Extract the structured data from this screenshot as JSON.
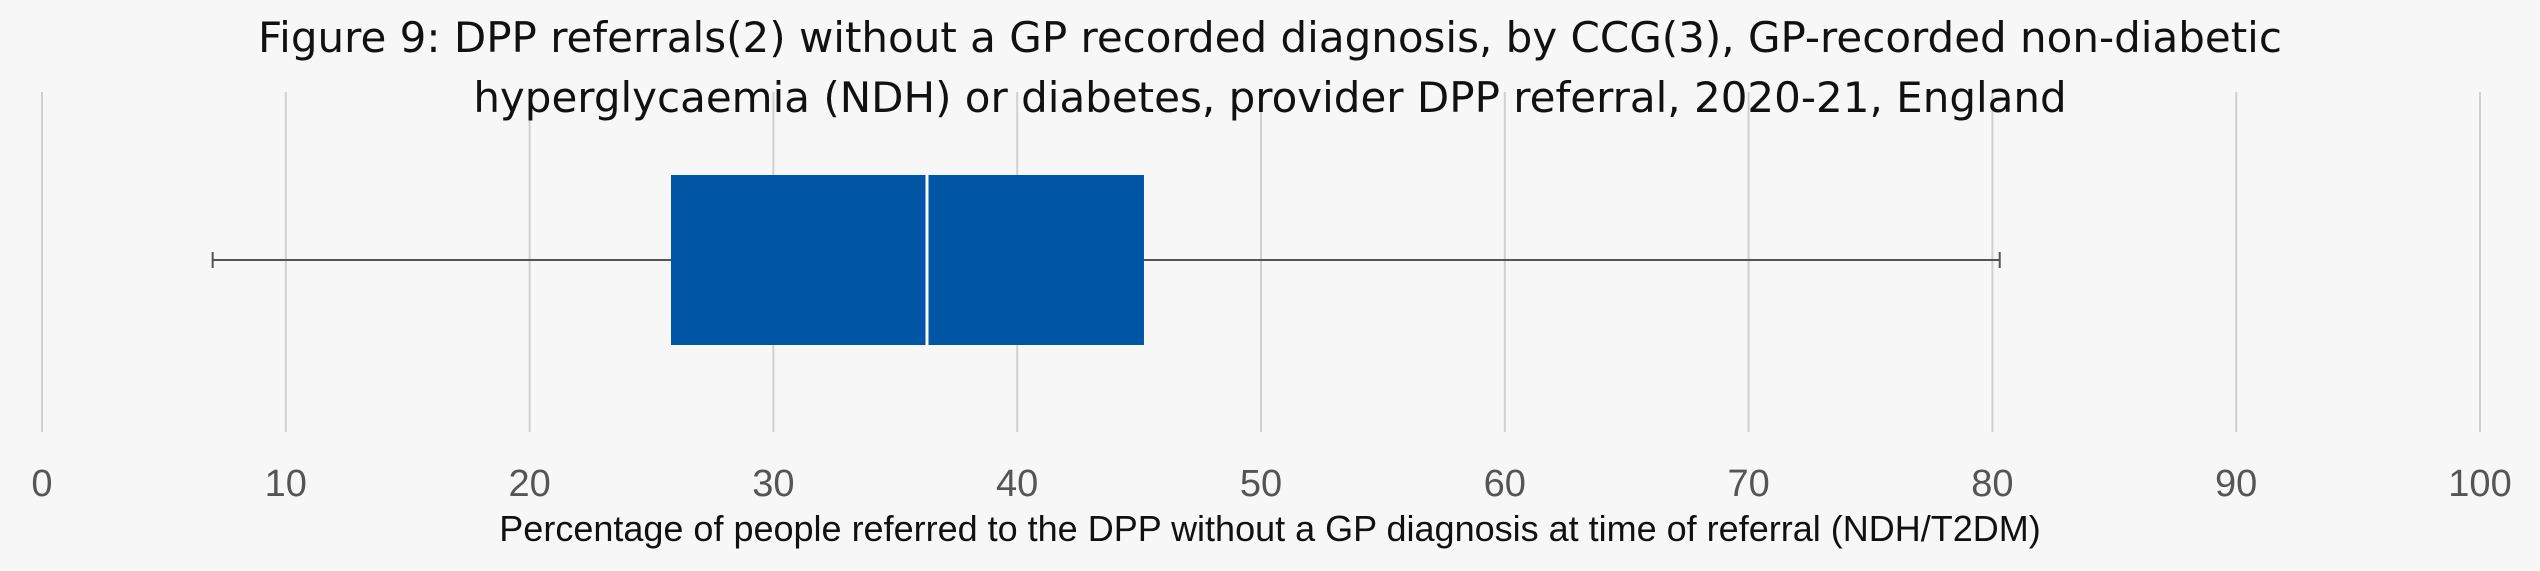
{
  "chart_data": {
    "type": "box",
    "title_lines": [
      "Figure 9: DPP referrals(2) without a GP recorded diagnosis, by CCG(3), GP-recorded non-diabetic",
      "hyperglycaemia (NDH) or diabetes, provider DPP referral, 2020-21, England"
    ],
    "xlabel": "Percentage of people referred to the DPP without a GP diagnosis at time of referral (NDH/T2DM)",
    "ylabel": "",
    "xlim": [
      0,
      100
    ],
    "xticks": [
      "0",
      "10",
      "20",
      "30",
      "40",
      "50",
      "60",
      "70",
      "80",
      "90",
      "100"
    ],
    "xtick_values": [
      0,
      10,
      20,
      30,
      40,
      50,
      60,
      70,
      80,
      90,
      100
    ],
    "grid": true,
    "box": {
      "min": 7.0,
      "q1": 25.8,
      "median": 36.3,
      "q3": 45.2,
      "max": 80.3
    },
    "colors": {
      "box_fill": "#0055a5",
      "median_line": "#ffffff",
      "whisker": "#555555",
      "grid": "#d0d0d0"
    }
  }
}
